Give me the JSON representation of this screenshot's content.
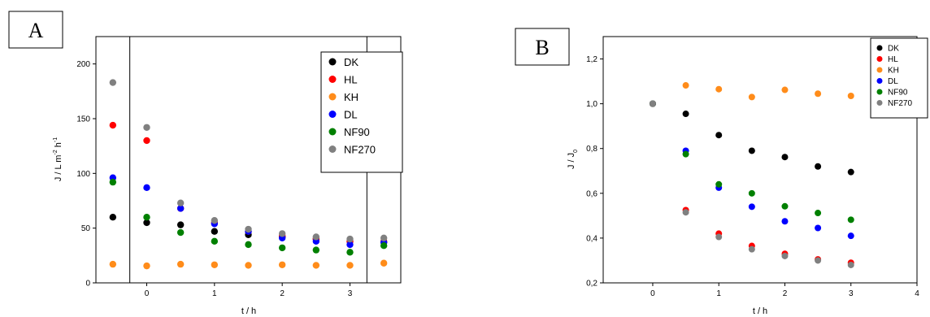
{
  "chart_data": [
    {
      "type": "scatter",
      "panel_label": "A",
      "title": "",
      "xlabel": "t / h",
      "ylabel": {
        "main": "J / L m",
        "sup1": "-2",
        "mid": " h",
        "sup2": "-1"
      },
      "xlim": [
        -0.75,
        3.75
      ],
      "ylim": [
        0,
        225
      ],
      "xticks": [
        0,
        1,
        2,
        3
      ],
      "yticks": [
        0,
        50,
        100,
        150,
        200
      ],
      "vertical_lines": [
        -0.25,
        3.25
      ],
      "legend_position": "top-right",
      "series": [
        {
          "name": "DK",
          "color": "#000000",
          "points": [
            [
              -0.5,
              60
            ],
            [
              0,
              55
            ],
            [
              0.5,
              53
            ],
            [
              1,
              47
            ],
            [
              1.5,
              44
            ],
            [
              2,
              42
            ],
            [
              2.5,
              40
            ],
            [
              3,
              38
            ],
            [
              3.5,
              37
            ]
          ]
        },
        {
          "name": "HL",
          "color": "#ff0000",
          "points": [
            [
              -0.5,
              144
            ],
            [
              0,
              130
            ],
            [
              0.5,
              68
            ],
            [
              1,
              55
            ],
            [
              1.5,
              47
            ],
            [
              2,
              43
            ],
            [
              2.5,
              40
            ],
            [
              3,
              38
            ],
            [
              3.5,
              38
            ]
          ]
        },
        {
          "name": "KH",
          "color": "#ff8c1a",
          "points": [
            [
              -0.5,
              17
            ],
            [
              0,
              15.5
            ],
            [
              0.5,
              17
            ],
            [
              1,
              16.5
            ],
            [
              1.5,
              16
            ],
            [
              2,
              16.5
            ],
            [
              2.5,
              16
            ],
            [
              3,
              16
            ],
            [
              3.5,
              18
            ]
          ]
        },
        {
          "name": "DL",
          "color": "#0000ff",
          "points": [
            [
              -0.5,
              96
            ],
            [
              0,
              87
            ],
            [
              0.5,
              68
            ],
            [
              1,
              54
            ],
            [
              1.5,
              47
            ],
            [
              2,
              41
            ],
            [
              2.5,
              38
            ],
            [
              3,
              35
            ],
            [
              3.5,
              37
            ]
          ]
        },
        {
          "name": "NF90",
          "color": "#008000",
          "points": [
            [
              -0.5,
              92
            ],
            [
              0,
              60
            ],
            [
              0.5,
              46
            ],
            [
              1,
              38
            ],
            [
              1.5,
              35
            ],
            [
              2,
              32
            ],
            [
              2.5,
              30
            ],
            [
              3,
              28
            ],
            [
              3.5,
              34
            ]
          ]
        },
        {
          "name": "NF270",
          "color": "#808080",
          "points": [
            [
              -0.5,
              183
            ],
            [
              0,
              142
            ],
            [
              0.5,
              73
            ],
            [
              1,
              57
            ],
            [
              1.5,
              49
            ],
            [
              2,
              45
            ],
            [
              2.5,
              42
            ],
            [
              3,
              40
            ],
            [
              3.5,
              41
            ]
          ]
        }
      ]
    },
    {
      "type": "scatter",
      "panel_label": "B",
      "title": "",
      "xlabel": "t / h",
      "ylabel": {
        "main": "J / J",
        "sub": "0"
      },
      "xlim": [
        -0.75,
        4
      ],
      "ylim": [
        0.2,
        1.3
      ],
      "xticks": [
        0,
        1,
        2,
        3,
        4
      ],
      "ytick_labels": [
        "0,2",
        "0,4",
        "0,6",
        "0,8",
        "1,0",
        "1,2"
      ],
      "yticks": [
        0.2,
        0.4,
        0.6,
        0.8,
        1.0,
        1.2
      ],
      "legend_position": "top-right",
      "series": [
        {
          "name": "DK",
          "color": "#000000",
          "points": [
            [
              0,
              1.0
            ],
            [
              0.5,
              0.955
            ],
            [
              1,
              0.86
            ],
            [
              1.5,
              0.79
            ],
            [
              2,
              0.762
            ],
            [
              2.5,
              0.72
            ],
            [
              3,
              0.695
            ]
          ]
        },
        {
          "name": "HL",
          "color": "#ff0000",
          "points": [
            [
              0,
              1.0
            ],
            [
              0.5,
              0.525
            ],
            [
              1,
              0.42
            ],
            [
              1.5,
              0.365
            ],
            [
              2,
              0.33
            ],
            [
              2.5,
              0.305
            ],
            [
              3,
              0.29
            ]
          ]
        },
        {
          "name": "KH",
          "color": "#ff8c1a",
          "points": [
            [
              0,
              1.0
            ],
            [
              0.5,
              1.082
            ],
            [
              1,
              1.065
            ],
            [
              1.5,
              1.03
            ],
            [
              2,
              1.062
            ],
            [
              2.5,
              1.045
            ],
            [
              3,
              1.035
            ]
          ]
        },
        {
          "name": "DL",
          "color": "#0000ff",
          "points": [
            [
              0,
              1.0
            ],
            [
              0.5,
              0.79
            ],
            [
              1,
              0.625
            ],
            [
              1.5,
              0.54
            ],
            [
              2,
              0.475
            ],
            [
              2.5,
              0.445
            ],
            [
              3,
              0.41
            ]
          ]
        },
        {
          "name": "NF90",
          "color": "#008000",
          "points": [
            [
              0,
              1.0
            ],
            [
              0.5,
              0.775
            ],
            [
              1,
              0.64
            ],
            [
              1.5,
              0.6
            ],
            [
              2,
              0.542
            ],
            [
              2.5,
              0.512
            ],
            [
              3,
              0.482
            ]
          ]
        },
        {
          "name": "NF270",
          "color": "#808080",
          "points": [
            [
              0,
              1.0
            ],
            [
              0.5,
              0.515
            ],
            [
              1,
              0.405
            ],
            [
              1.5,
              0.35
            ],
            [
              2,
              0.32
            ],
            [
              2.5,
              0.3
            ],
            [
              3,
              0.28
            ]
          ]
        }
      ]
    }
  ]
}
